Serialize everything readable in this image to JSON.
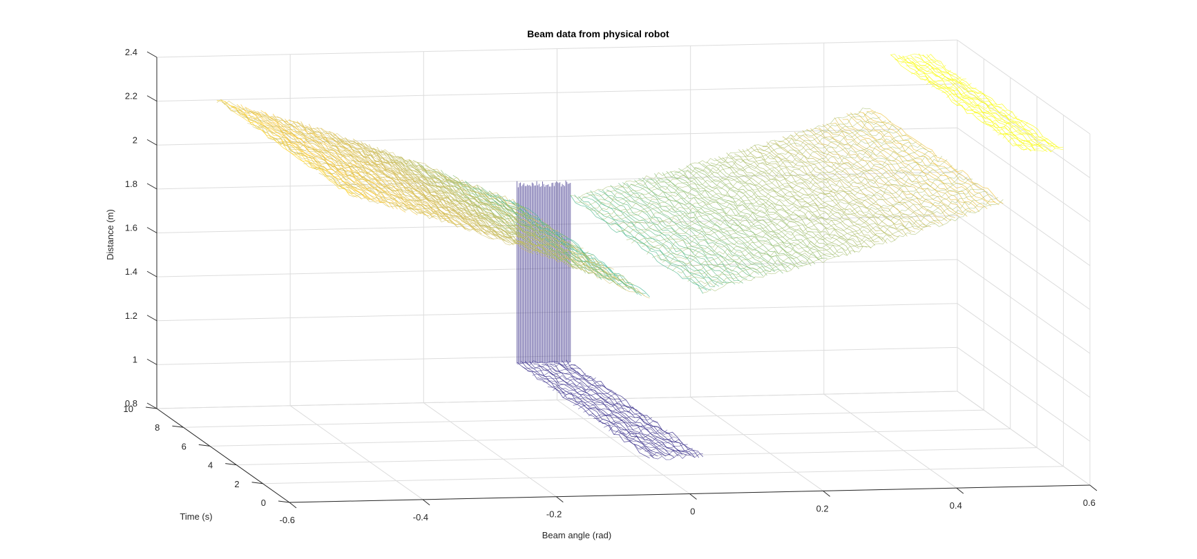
{
  "chart_data": {
    "type": "surface-3d",
    "title": "Beam data from physical robot",
    "xlabel": "Beam angle (rad)",
    "ylabel": "Time (s)",
    "zlabel": "Distance (m)",
    "xlim": [
      -0.6,
      0.6
    ],
    "ylim": [
      0,
      10
    ],
    "zlim": [
      0.8,
      2.4
    ],
    "x_ticks": [
      "-0.6",
      "-0.4",
      "-0.2",
      "0",
      "0.2",
      "0.4",
      "0.6"
    ],
    "y_ticks": [
      "0",
      "2",
      "4",
      "6",
      "8",
      "10"
    ],
    "z_ticks": [
      "0.8",
      "1",
      "1.2",
      "1.4",
      "1.6",
      "1.8",
      "2",
      "2.2",
      "2.4"
    ],
    "grid": true,
    "colormap": [
      "#352a87",
      "#0f5cdd",
      "#1481d6",
      "#06a4ca",
      "#2eb7a4",
      "#87bf77",
      "#d1bb59",
      "#fec832",
      "#f9fb0e"
    ],
    "surfaces": [
      {
        "x_range": [
          -0.51,
          -0.06
        ],
        "y_range": [
          0,
          10
        ],
        "distance_at_x": [
          [
            -0.51,
            2.2
          ],
          [
            -0.35,
            2.05
          ],
          [
            -0.2,
            1.88
          ],
          [
            -0.06,
            1.7
          ]
        ]
      },
      {
        "x_range": [
          -0.06,
          0.02
        ],
        "y_range": [
          0,
          10
        ],
        "distance_at_x": [
          [
            -0.06,
            0.97
          ],
          [
            0.02,
            0.97
          ]
        ]
      },
      {
        "x_range": [
          0.02,
          0.47
        ],
        "y_range": [
          0,
          10
        ],
        "distance_at_x": [
          [
            0.02,
            1.72
          ],
          [
            0.2,
            1.85
          ],
          [
            0.35,
            1.98
          ],
          [
            0.47,
            2.1
          ]
        ]
      },
      {
        "x_range": [
          0.5,
          0.56
        ],
        "y_range": [
          0,
          10
        ],
        "distance_at_x": [
          [
            0.5,
            2.33
          ],
          [
            0.56,
            2.33
          ]
        ]
      }
    ],
    "vertical_lines": {
      "x_range": [
        -0.06,
        0.02
      ],
      "y": 10,
      "z_range": [
        0.97,
        1.8
      ]
    }
  }
}
